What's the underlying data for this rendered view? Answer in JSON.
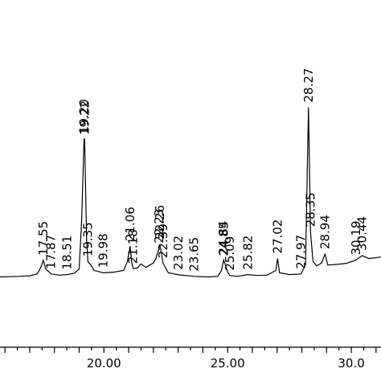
{
  "chart_data": {
    "type": "line",
    "title": "",
    "xlabel": "",
    "ylabel": "",
    "xlim": [
      15.8,
      31.2
    ],
    "ylim": [
      0,
      100
    ],
    "x_ticks": [
      {
        "value": 20,
        "label": "20.00"
      },
      {
        "value": 25,
        "label": "25.00"
      },
      {
        "value": 30,
        "label": "30.0"
      }
    ],
    "series": [
      {
        "values": [
          {
            "x": 15.8,
            "y": 8.8
          },
          {
            "x": 16.2,
            "y": 8.9
          },
          {
            "x": 16.6,
            "y": 9.0
          },
          {
            "x": 17.0,
            "y": 9.2
          },
          {
            "x": 17.3,
            "y": 9.8
          },
          {
            "x": 17.45,
            "y": 12.0
          },
          {
            "x": 17.55,
            "y": 14.4
          },
          {
            "x": 17.65,
            "y": 11.5
          },
          {
            "x": 17.87,
            "y": 9.8
          },
          {
            "x": 18.2,
            "y": 9.4
          },
          {
            "x": 18.51,
            "y": 9.6
          },
          {
            "x": 18.8,
            "y": 10.0
          },
          {
            "x": 19.0,
            "y": 11.5
          },
          {
            "x": 19.1,
            "y": 28.0
          },
          {
            "x": 19.2,
            "y": 55.5
          },
          {
            "x": 19.22,
            "y": 55.0
          },
          {
            "x": 19.3,
            "y": 22.0
          },
          {
            "x": 19.35,
            "y": 14.0
          },
          {
            "x": 19.5,
            "y": 12.5
          },
          {
            "x": 19.6,
            "y": 11.0
          },
          {
            "x": 19.98,
            "y": 10.2
          },
          {
            "x": 20.4,
            "y": 10.4
          },
          {
            "x": 20.8,
            "y": 11.0
          },
          {
            "x": 20.95,
            "y": 14.0
          },
          {
            "x": 21.06,
            "y": 19.2
          },
          {
            "x": 21.12,
            "y": 14.0
          },
          {
            "x": 21.18,
            "y": 11.6
          },
          {
            "x": 21.35,
            "y": 11.8
          },
          {
            "x": 21.5,
            "y": 13.2
          },
          {
            "x": 21.7,
            "y": 12.0
          },
          {
            "x": 22.0,
            "y": 13.5
          },
          {
            "x": 22.1,
            "y": 15.0
          },
          {
            "x": 22.23,
            "y": 18.5
          },
          {
            "x": 22.26,
            "y": 19.8
          },
          {
            "x": 22.39,
            "y": 13.5
          },
          {
            "x": 22.6,
            "y": 10.2
          },
          {
            "x": 23.02,
            "y": 9.5
          },
          {
            "x": 23.65,
            "y": 9.0
          },
          {
            "x": 24.2,
            "y": 8.8
          },
          {
            "x": 24.6,
            "y": 9.0
          },
          {
            "x": 24.75,
            "y": 11.0
          },
          {
            "x": 24.84,
            "y": 14.5
          },
          {
            "x": 24.85,
            "y": 14.2
          },
          {
            "x": 25.0,
            "y": 10.5
          },
          {
            "x": 25.09,
            "y": 9.3
          },
          {
            "x": 25.4,
            "y": 9.0
          },
          {
            "x": 25.82,
            "y": 9.6
          },
          {
            "x": 26.2,
            "y": 9.3
          },
          {
            "x": 26.6,
            "y": 9.4
          },
          {
            "x": 26.95,
            "y": 11.0
          },
          {
            "x": 27.02,
            "y": 15.0
          },
          {
            "x": 27.1,
            "y": 10.2
          },
          {
            "x": 27.5,
            "y": 9.6
          },
          {
            "x": 27.97,
            "y": 9.8
          },
          {
            "x": 28.15,
            "y": 13.0
          },
          {
            "x": 28.27,
            "y": 66.0
          },
          {
            "x": 28.35,
            "y": 24.0
          },
          {
            "x": 28.45,
            "y": 14.0
          },
          {
            "x": 28.6,
            "y": 12.5
          },
          {
            "x": 28.8,
            "y": 13.5
          },
          {
            "x": 28.94,
            "y": 16.5
          },
          {
            "x": 29.05,
            "y": 12.8
          },
          {
            "x": 29.4,
            "y": 13.0
          },
          {
            "x": 29.8,
            "y": 13.4
          },
          {
            "x": 30.19,
            "y": 14.5
          },
          {
            "x": 30.44,
            "y": 16.0
          },
          {
            "x": 30.7,
            "y": 15.0
          },
          {
            "x": 31.2,
            "y": 15.5
          }
        ]
      }
    ],
    "peak_labels": [
      {
        "x": 17.55,
        "label": "17.55"
      },
      {
        "x": 17.87,
        "label": "17.87"
      },
      {
        "x": 18.51,
        "label": "18.51"
      },
      {
        "x": 19.2,
        "label": "19.20"
      },
      {
        "x": 19.22,
        "label": "19.22"
      },
      {
        "x": 19.35,
        "label": "19.35"
      },
      {
        "x": 19.98,
        "label": "19.98"
      },
      {
        "x": 21.06,
        "label": "21.06"
      },
      {
        "x": 21.18,
        "label": "21.18"
      },
      {
        "x": 22.23,
        "label": "22.23"
      },
      {
        "x": 22.26,
        "label": "22.26"
      },
      {
        "x": 22.39,
        "label": "22.39"
      },
      {
        "x": 23.02,
        "label": "23.02"
      },
      {
        "x": 23.65,
        "label": "23.65"
      },
      {
        "x": 24.84,
        "label": "24.84"
      },
      {
        "x": 24.85,
        "label": "24.85"
      },
      {
        "x": 25.09,
        "label": "25.09"
      },
      {
        "x": 25.82,
        "label": "25.82"
      },
      {
        "x": 27.02,
        "label": "27.02"
      },
      {
        "x": 27.97,
        "label": "27.97"
      },
      {
        "x": 28.27,
        "label": "28.27"
      },
      {
        "x": 28.35,
        "label": "28.35"
      },
      {
        "x": 28.94,
        "label": "28.94"
      },
      {
        "x": 30.19,
        "label": "30.19"
      },
      {
        "x": 30.44,
        "label": "30.44"
      }
    ],
    "grid": false,
    "legend": "none"
  }
}
